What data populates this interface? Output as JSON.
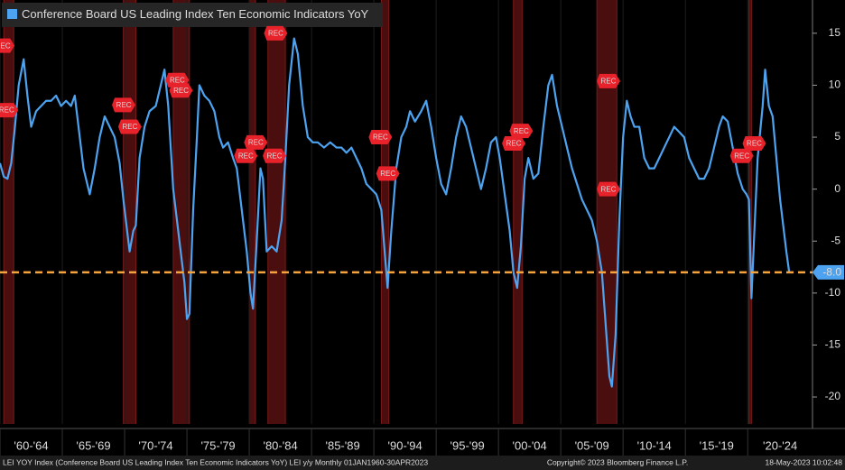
{
  "chart_data": {
    "type": "line",
    "series": [
      {
        "name": "Conference Board US Leading Index Ten Economic Indicators YoY",
        "color": "#4da3f0",
        "x": [
          1960.0,
          1960.3,
          1960.6,
          1960.9,
          1961.2,
          1961.5,
          1961.9,
          1962.2,
          1962.5,
          1962.9,
          1963.3,
          1963.7,
          1964.1,
          1964.5,
          1964.9,
          1965.3,
          1965.7,
          1966.0,
          1966.3,
          1966.7,
          1967.0,
          1967.2,
          1967.6,
          1968.0,
          1968.4,
          1968.8,
          1969.2,
          1969.6,
          1969.9,
          1970.2,
          1970.4,
          1970.7,
          1970.9,
          1971.2,
          1971.6,
          1972.0,
          1972.5,
          1972.9,
          1973.2,
          1973.5,
          1973.9,
          1974.2,
          1974.5,
          1974.8,
          1975.0,
          1975.2,
          1975.5,
          1975.8,
          1976.0,
          1976.4,
          1976.8,
          1977.2,
          1977.6,
          1977.9,
          1978.3,
          1978.7,
          1979.0,
          1979.4,
          1979.8,
          1980.1,
          1980.3,
          1980.6,
          1980.9,
          1981.1,
          1981.4,
          1981.8,
          1982.2,
          1982.6,
          1982.9,
          1983.2,
          1983.6,
          1983.9,
          1984.3,
          1984.7,
          1985.1,
          1985.5,
          1986.0,
          1986.5,
          1987.0,
          1987.4,
          1987.8,
          1988.2,
          1988.6,
          1989.0,
          1989.4,
          1989.8,
          1990.2,
          1990.6,
          1990.9,
          1991.1,
          1991.4,
          1991.8,
          1992.2,
          1992.6,
          1992.9,
          1993.3,
          1993.8,
          1994.2,
          1994.6,
          1995.0,
          1995.4,
          1995.8,
          1996.2,
          1996.6,
          1997.0,
          1997.4,
          1997.8,
          1998.2,
          1998.6,
          1999.0,
          1999.4,
          1999.8,
          2000.1,
          2000.5,
          2000.9,
          2001.2,
          2001.5,
          2001.8,
          2002.1,
          2002.4,
          2002.8,
          2003.2,
          2003.6,
          2004.0,
          2004.3,
          2004.7,
          2005.1,
          2005.5,
          2005.9,
          2006.3,
          2006.7,
          2007.1,
          2007.5,
          2007.9,
          2008.3,
          2008.6,
          2008.9,
          2009.1,
          2009.4,
          2009.7,
          2010.0,
          2010.3,
          2010.6,
          2010.9,
          2011.3,
          2011.7,
          2012.1,
          2012.5,
          2012.9,
          2013.3,
          2013.7,
          2014.1,
          2014.5,
          2014.9,
          2015.3,
          2015.7,
          2016.1,
          2016.5,
          2016.9,
          2017.3,
          2017.7,
          2018.0,
          2018.4,
          2018.8,
          2019.2,
          2019.6,
          2019.9,
          2020.1,
          2020.3,
          2020.5,
          2020.8,
          2021.2,
          2021.4,
          2021.7,
          2022.0,
          2022.3,
          2022.6,
          2022.9,
          2023.1,
          2023.33
        ],
        "values": [
          2.5,
          1.2,
          1.0,
          2.5,
          6,
          10,
          12.5,
          9,
          6,
          7.5,
          8,
          8.5,
          8.5,
          9,
          8,
          8.5,
          8,
          9,
          6,
          2,
          0.5,
          -0.5,
          2,
          5,
          7,
          6,
          5,
          2.5,
          -1,
          -4,
          -6,
          -4,
          -3.5,
          3,
          6,
          7.5,
          8,
          10,
          11.5,
          8,
          0,
          -3,
          -6,
          -9,
          -12.5,
          -12,
          -2,
          5,
          10,
          9,
          8.5,
          7.5,
          5,
          4,
          4.5,
          3,
          2,
          -2,
          -6,
          -10,
          -11.5,
          -5,
          2,
          1,
          -6,
          -5.5,
          -6,
          -3,
          3,
          10,
          14.5,
          13,
          8,
          5,
          4.5,
          4.5,
          4,
          4.5,
          4,
          4,
          3.5,
          4,
          3,
          2,
          0.5,
          0,
          -0.5,
          -2,
          -6.5,
          -9.5,
          -4,
          2,
          5,
          6,
          7.5,
          6.5,
          7.5,
          8.5,
          6,
          3,
          0.5,
          -0.5,
          2,
          5,
          7,
          6,
          4,
          2,
          0,
          2,
          4.5,
          5,
          3,
          -0.5,
          -4,
          -8,
          -9.5,
          -5.5,
          1,
          3,
          1,
          1.5,
          6,
          10,
          11,
          8,
          6,
          4,
          2,
          0.5,
          -1,
          -2,
          -3,
          -5,
          -8,
          -13,
          -18,
          -19,
          -14,
          -3,
          5,
          8.5,
          7,
          6,
          6,
          3,
          2,
          2,
          3,
          4,
          5,
          6,
          5.5,
          5,
          3,
          2,
          1,
          1,
          2,
          4,
          6,
          7,
          6.5,
          4,
          1.5,
          0,
          -0.5,
          -1,
          -10.5,
          -5,
          3,
          8,
          11.5,
          8,
          7,
          3,
          -1,
          -4,
          -6,
          -8
        ]
      }
    ],
    "xlim": [
      1960,
      2025.2
    ],
    "xticks": [
      {
        "value": 1960,
        "label": "'60-'64"
      },
      {
        "value": 1965,
        "label": "'65-'69"
      },
      {
        "value": 1970,
        "label": "'70-'74"
      },
      {
        "value": 1975,
        "label": "'75-'79"
      },
      {
        "value": 1980,
        "label": "'80-'84"
      },
      {
        "value": 1985,
        "label": "'85-'89"
      },
      {
        "value": 1990,
        "label": "'90-'94"
      },
      {
        "value": 1995,
        "label": "'95-'99"
      },
      {
        "value": 2000,
        "label": "'00-'04"
      },
      {
        "value": 2005,
        "label": "'05-'09"
      },
      {
        "value": 2010,
        "label": "'10-'14"
      },
      {
        "value": 2015,
        "label": "'15-'19"
      },
      {
        "value": 2020,
        "label": "'20-'24"
      }
    ],
    "ylim": [
      -22.6,
      18.2
    ],
    "yticks": [
      15,
      10,
      5,
      0,
      -5,
      -10,
      -15,
      -20
    ],
    "recessions": [
      [
        1960.3,
        1961.1
      ],
      [
        1969.9,
        1970.9
      ],
      [
        1973.9,
        1975.2
      ],
      [
        1980.0,
        1980.5
      ],
      [
        1981.5,
        1982.9
      ],
      [
        1990.6,
        1991.2
      ],
      [
        2001.2,
        2001.9
      ],
      [
        2007.9,
        2009.5
      ],
      [
        2020.1,
        2020.3
      ]
    ],
    "annotations": [
      {
        "text": "REC",
        "x": 1960.3,
        "y": 13.8
      },
      {
        "text": "REC",
        "x": 1960.6,
        "y": 7.6
      },
      {
        "text": "REC",
        "x": 1970.0,
        "y": 8.1
      },
      {
        "text": "REC",
        "x": 1970.5,
        "y": 6.0
      },
      {
        "text": "REC",
        "x": 1974.3,
        "y": 10.5
      },
      {
        "text": "REC",
        "x": 1974.6,
        "y": 9.5
      },
      {
        "text": "REC",
        "x": 1980.6,
        "y": 4.5
      },
      {
        "text": "REC",
        "x": 1979.8,
        "y": 3.2
      },
      {
        "text": "REC",
        "x": 1982.2,
        "y": 15.0
      },
      {
        "text": "REC",
        "x": 1982.1,
        "y": 3.2
      },
      {
        "text": "REC",
        "x": 1990.6,
        "y": 5.0
      },
      {
        "text": "REC",
        "x": 1991.2,
        "y": 1.5
      },
      {
        "text": "REC",
        "x": 2001.9,
        "y": 5.6
      },
      {
        "text": "REC",
        "x": 2001.3,
        "y": 4.4
      },
      {
        "text": "REC",
        "x": 2008.9,
        "y": 10.4
      },
      {
        "text": "REC",
        "x": 2008.9,
        "y": 0.0
      },
      {
        "text": "REC",
        "x": 2020.6,
        "y": 4.4
      },
      {
        "text": "REC",
        "x": 2019.6,
        "y": 3.2
      }
    ],
    "reference_line": {
      "value": -8,
      "label": "-8.0",
      "color": "#f5a33c"
    },
    "footer": {
      "left": "LEI YOY Index (Conference Board US Leading Index Ten Economic Indicators YoY) LEI y/y  Monthly 01JAN1960-30APR2023",
      "center": "Copyright© 2023 Bloomberg Finance L.P.",
      "right": "18-May-2023 10:02:48"
    }
  }
}
